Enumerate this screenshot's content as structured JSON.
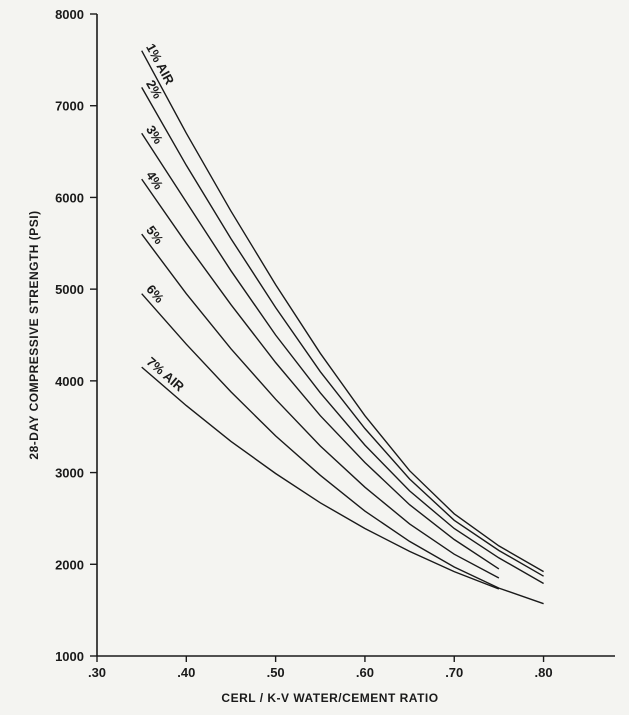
{
  "chart_data": {
    "type": "line",
    "title": "",
    "xlabel": "CERL / K-V WATER/CEMENT RATIO",
    "ylabel": "28-DAY COMPRESSIVE STRENGTH (PSI)",
    "xlim": [
      0.3,
      0.88
    ],
    "ylim": [
      1000,
      8000
    ],
    "x_ticks": [
      {
        "value": 0.3,
        "label": ".30"
      },
      {
        "value": 0.4,
        "label": ".40"
      },
      {
        "value": 0.5,
        "label": ".50"
      },
      {
        "value": 0.6,
        "label": ".60"
      },
      {
        "value": 0.7,
        "label": ".70"
      },
      {
        "value": 0.8,
        "label": ".80"
      }
    ],
    "y_ticks": [
      {
        "value": 1000,
        "label": "1000"
      },
      {
        "value": 2000,
        "label": "2000"
      },
      {
        "value": 3000,
        "label": "3000"
      },
      {
        "value": 4000,
        "label": "4000"
      },
      {
        "value": 5000,
        "label": "5000"
      },
      {
        "value": 6000,
        "label": "6000"
      },
      {
        "value": 7000,
        "label": "7000"
      },
      {
        "value": 8000,
        "label": "8000"
      }
    ],
    "grid": false,
    "legend": "none",
    "series": [
      {
        "name": "1% AIR",
        "x": [
          0.35,
          0.4,
          0.45,
          0.5,
          0.55,
          0.6,
          0.65,
          0.7,
          0.75,
          0.8
        ],
        "y": [
          7600,
          6700,
          5850,
          5050,
          4300,
          3620,
          3020,
          2550,
          2200,
          1920
        ]
      },
      {
        "name": "2%",
        "x": [
          0.35,
          0.4,
          0.45,
          0.5,
          0.55,
          0.6,
          0.65,
          0.7,
          0.75,
          0.8
        ],
        "y": [
          7200,
          6350,
          5550,
          4800,
          4100,
          3480,
          2930,
          2480,
          2150,
          1870
        ]
      },
      {
        "name": "3%",
        "x": [
          0.35,
          0.4,
          0.45,
          0.5,
          0.55,
          0.6,
          0.65,
          0.7,
          0.75,
          0.8
        ],
        "y": [
          6700,
          5950,
          5200,
          4500,
          3870,
          3300,
          2800,
          2390,
          2070,
          1790
        ]
      },
      {
        "name": "4%",
        "x": [
          0.35,
          0.4,
          0.45,
          0.5,
          0.55,
          0.6,
          0.65,
          0.7,
          0.75
        ],
        "y": [
          6200,
          5500,
          4830,
          4200,
          3620,
          3110,
          2650,
          2270,
          1950
        ]
      },
      {
        "name": "5%",
        "x": [
          0.35,
          0.4,
          0.45,
          0.5,
          0.55,
          0.6,
          0.65,
          0.7,
          0.75
        ],
        "y": [
          5600,
          4950,
          4350,
          3800,
          3290,
          2840,
          2440,
          2110,
          1850
        ]
      },
      {
        "name": "6%",
        "x": [
          0.35,
          0.4,
          0.45,
          0.5,
          0.55,
          0.6,
          0.65,
          0.7,
          0.75,
          0.8
        ],
        "y": [
          4950,
          4400,
          3880,
          3400,
          2970,
          2580,
          2250,
          1970,
          1740,
          1570
        ]
      },
      {
        "name": "7% AIR",
        "x": [
          0.35,
          0.4,
          0.45,
          0.5,
          0.55,
          0.6,
          0.65,
          0.7,
          0.75
        ],
        "y": [
          4150,
          3730,
          3340,
          2990,
          2670,
          2390,
          2140,
          1920,
          1730
        ]
      }
    ]
  }
}
